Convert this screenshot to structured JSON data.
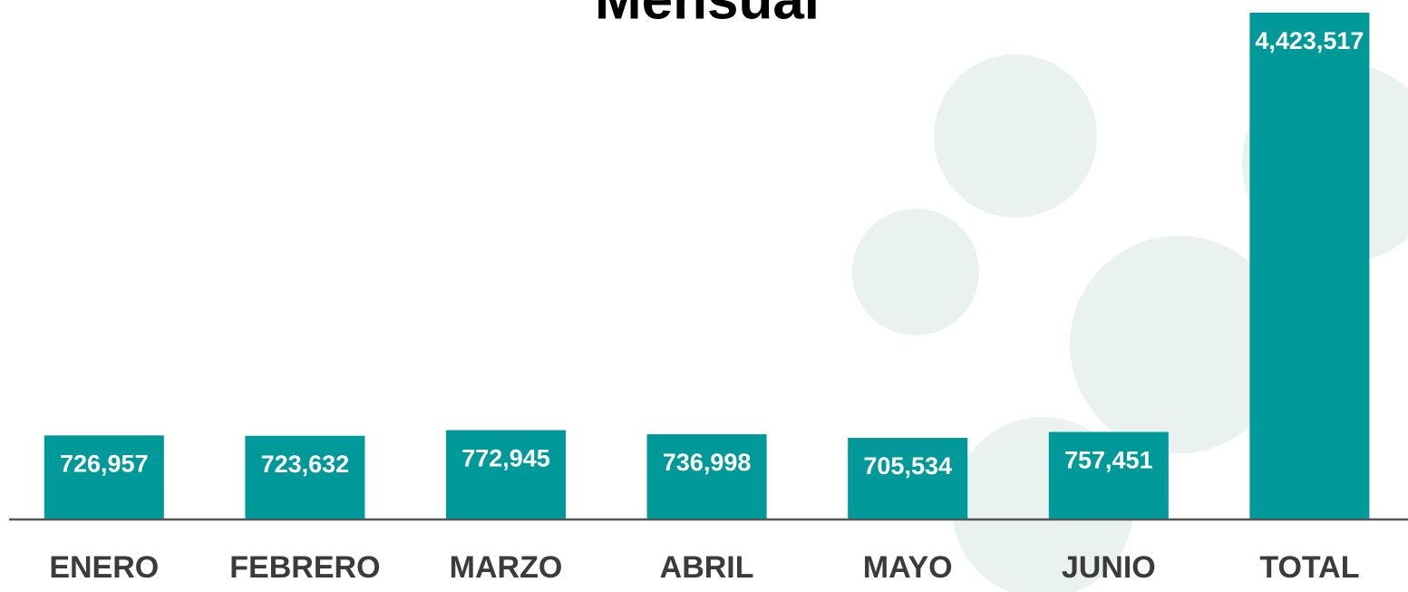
{
  "chart_data": {
    "type": "bar",
    "title": "Mensual",
    "categories": [
      "ENERO",
      "FEBRERO",
      "MARZO",
      "ABRIL",
      "MAYO",
      "JUNIO",
      "TOTAL"
    ],
    "values": [
      726957,
      723632,
      772945,
      736998,
      705534,
      757451,
      4423517
    ],
    "value_labels": [
      "726,957",
      "723,632",
      "772,945",
      "736,998",
      "705,534",
      "757,451",
      "4,423,517"
    ],
    "color": "#00999a"
  }
}
